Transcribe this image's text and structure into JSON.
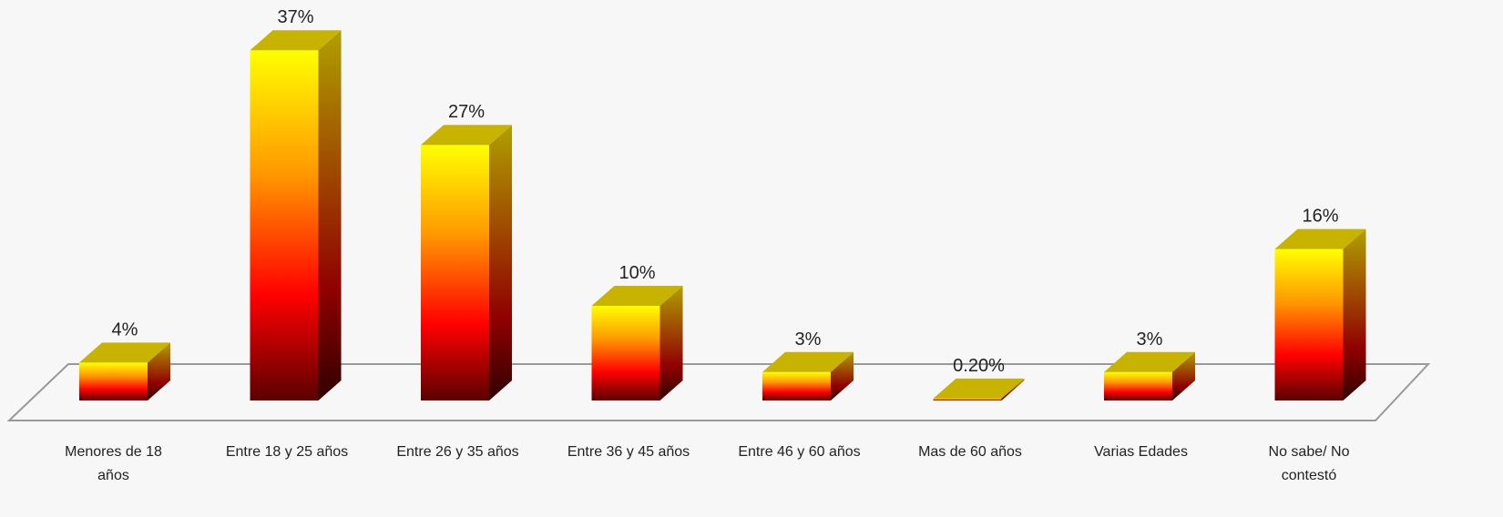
{
  "chart_data": {
    "type": "bar3d",
    "categories": [
      "Menores de 18 años",
      "Entre 18 y 25 años",
      "Entre 26 y 35 años",
      "Entre 36 y 45 años",
      "Entre 46 y 60 años",
      "Mas de 60 años",
      "Varias Edades",
      "No sabe/ No contestó"
    ],
    "values": [
      4,
      37,
      27,
      10,
      3,
      0.2,
      3,
      16
    ],
    "value_labels": [
      "4%",
      "37%",
      "27%",
      "10%",
      "3%",
      "0.20%",
      "3%",
      "16%"
    ]
  }
}
